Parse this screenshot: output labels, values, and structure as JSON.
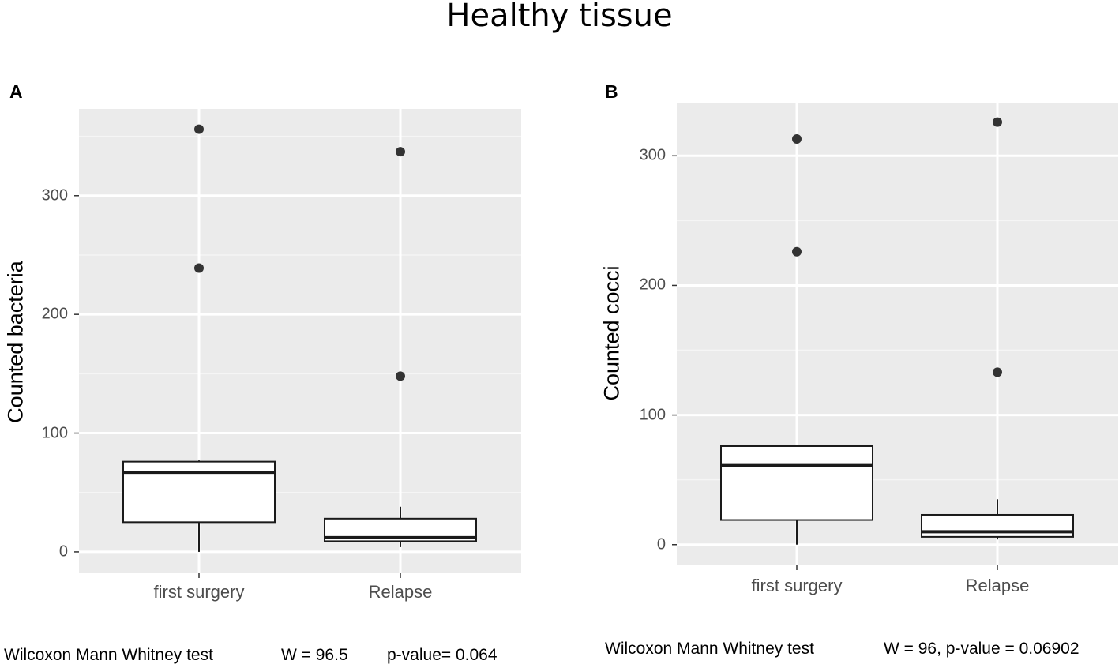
{
  "figure_title": "Healthy tissue",
  "chart_data": [
    {
      "panel": "A",
      "type": "boxplot",
      "ylabel": "Counted bacteria",
      "xlabel": "",
      "ylim": [
        -18,
        373
      ],
      "yticks": [
        0,
        100,
        200,
        300
      ],
      "ytick_labels": [
        "0",
        "100",
        "200",
        "300"
      ],
      "categories": [
        "first surgery",
        "Relapse"
      ],
      "boxes": [
        {
          "group": "first surgery",
          "min": 0,
          "q1": 25,
          "median": 67,
          "q3": 76,
          "max": 77,
          "outliers": [
            356,
            239
          ]
        },
        {
          "group": "Relapse",
          "min": 4,
          "q1": 9,
          "median": 12,
          "q3": 28,
          "max": 38,
          "outliers": [
            337,
            148
          ]
        }
      ],
      "test_name": "Wilcoxon Mann Whitney test",
      "test_stat": "W = 96.5",
      "test_p": "p-value= 0.064"
    },
    {
      "panel": "B",
      "type": "boxplot",
      "ylabel": "Counted cocci",
      "xlabel": "",
      "ylim": [
        -16,
        341
      ],
      "yticks": [
        0,
        100,
        200,
        300
      ],
      "ytick_labels": [
        "0",
        "100",
        "200",
        "300"
      ],
      "categories": [
        "first surgery",
        "Relapse"
      ],
      "boxes": [
        {
          "group": "first surgery",
          "min": 0,
          "q1": 19,
          "median": 61,
          "q3": 76,
          "max": 77,
          "outliers": [
            313,
            226
          ]
        },
        {
          "group": "Relapse",
          "min": 4,
          "q1": 6,
          "median": 10,
          "q3": 23,
          "max": 35,
          "outliers": [
            326,
            133
          ]
        }
      ],
      "test_name": "Wilcoxon Mann Whitney test",
      "test_stat": "W = 96, p-value = 0.06902"
    }
  ]
}
